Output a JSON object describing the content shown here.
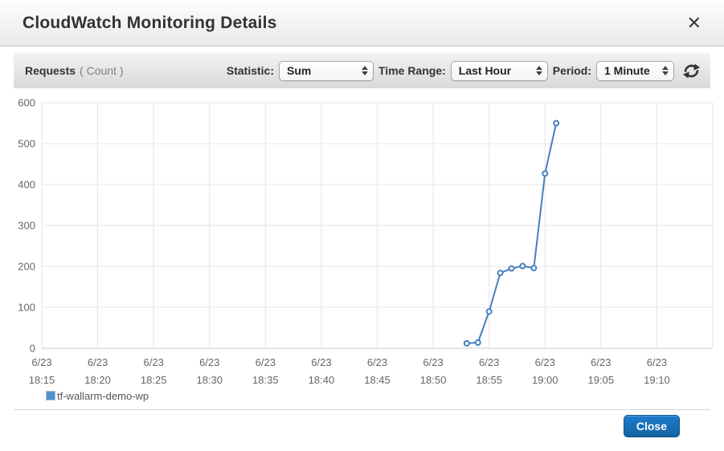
{
  "header": {
    "title": "CloudWatch Monitoring Details",
    "close_icon": "✕"
  },
  "toolbar": {
    "metric_name": "Requests",
    "metric_unit": "( Count )",
    "statistic_label": "Statistic:",
    "statistic_value": "Sum",
    "time_range_label": "Time Range:",
    "time_range_value": "Last Hour",
    "period_label": "Period:",
    "period_value": "1 Minute"
  },
  "chart_data": {
    "type": "line",
    "title": "Requests ( Count )",
    "xlabel": "",
    "ylabel": "",
    "ylim": [
      0,
      600
    ],
    "y_ticks": [
      0,
      100,
      200,
      300,
      400,
      500,
      600
    ],
    "x_ticks": [
      {
        "date": "6/23",
        "time": "18:15"
      },
      {
        "date": "6/23",
        "time": "18:20"
      },
      {
        "date": "6/23",
        "time": "18:25"
      },
      {
        "date": "6/23",
        "time": "18:30"
      },
      {
        "date": "6/23",
        "time": "18:35"
      },
      {
        "date": "6/23",
        "time": "18:40"
      },
      {
        "date": "6/23",
        "time": "18:45"
      },
      {
        "date": "6/23",
        "time": "18:50"
      },
      {
        "date": "6/23",
        "time": "18:55"
      },
      {
        "date": "6/23",
        "time": "19:00"
      },
      {
        "date": "6/23",
        "time": "19:05"
      },
      {
        "date": "6/23",
        "time": "19:10"
      }
    ],
    "x_range": [
      "18:15",
      "19:15"
    ],
    "grid": true,
    "legend_position": "bottom-left",
    "series": [
      {
        "name": "tf-wallarm-demo-wp",
        "color": "#4580bd",
        "marker": "circle-open",
        "points": [
          {
            "time": "18:53",
            "value": 12
          },
          {
            "time": "18:54",
            "value": 14
          },
          {
            "time": "18:55",
            "value": 90
          },
          {
            "time": "18:56",
            "value": 184
          },
          {
            "time": "18:57",
            "value": 195
          },
          {
            "time": "18:58",
            "value": 201
          },
          {
            "time": "18:59",
            "value": 196
          },
          {
            "time": "19:00",
            "value": 427
          },
          {
            "time": "19:01",
            "value": 550
          }
        ]
      }
    ]
  },
  "legend": {
    "series_name": "tf-wallarm-demo-wp",
    "swatch_color": "#4e94ce"
  },
  "footer": {
    "close_label": "Close"
  }
}
